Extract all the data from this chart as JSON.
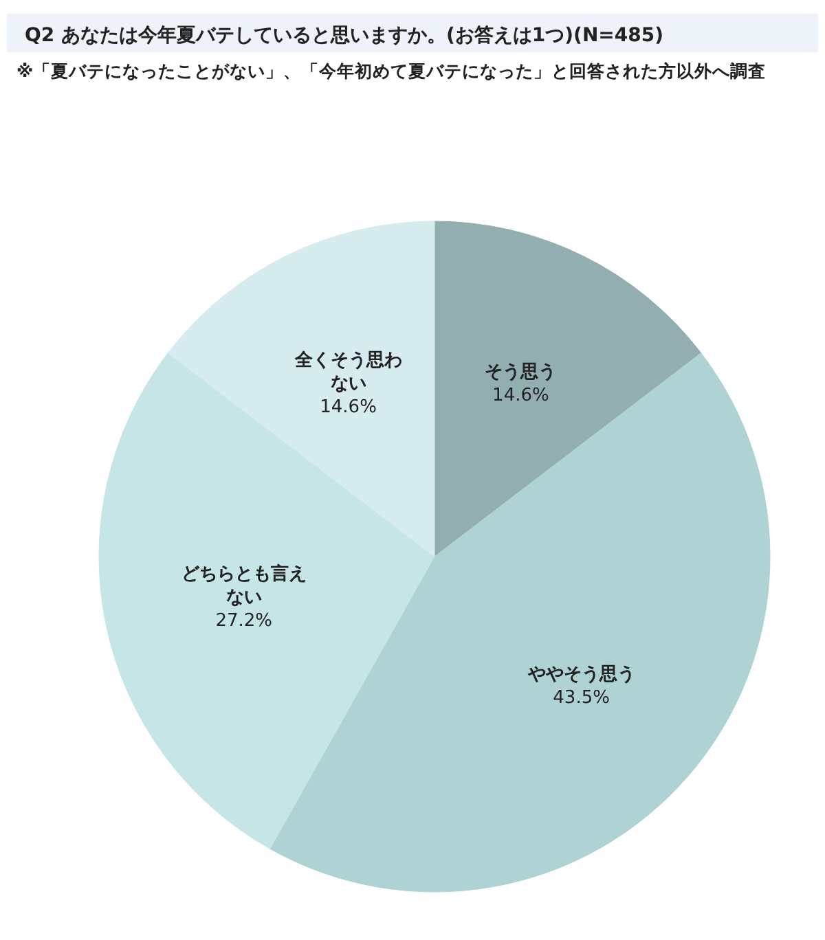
{
  "chart_data": {
    "type": "pie",
    "title": "Q2 あなたは今年夏バテしていると思いますか。(お答えは1つ)(N=485)",
    "subtitle": "※「夏バテになったことがない」、「今年初めて夏バテになった」と回答された方以外へ調査",
    "categories": [
      "そう思う",
      "ややそう思う",
      "どちらとも言えない",
      "全くそう思わない"
    ],
    "values": [
      14.6,
      43.5,
      27.2,
      14.6
    ],
    "colors": [
      "#93aeb0",
      "#afd2d4",
      "#c6e5e7",
      "#d7ecef"
    ],
    "value_labels": [
      "14.6%",
      "43.5%",
      "27.2%",
      "14.6%"
    ]
  }
}
